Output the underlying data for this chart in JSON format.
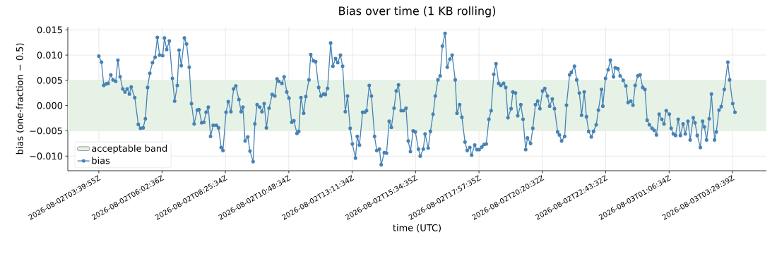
{
  "chart_data": {
    "type": "line",
    "title": "Bias over time (1 KB rolling)",
    "xlabel": "time (UTC)",
    "ylabel": "bias (one-fraction − 0.5)",
    "x": [
      "2026-08-02T03:40",
      "2026-08-02T03:46",
      "2026-08-02T03:51",
      "2026-08-02T03:56",
      "2026-08-02T04:01",
      "2026-08-02T04:07",
      "2026-08-02T04:12",
      "2026-08-02T04:18",
      "2026-08-02T04:23",
      "2026-08-02T04:28",
      "2026-08-02T04:34",
      "2026-08-02T04:39",
      "2026-08-02T04:44",
      "2026-08-02T04:49",
      "2026-08-02T04:53",
      "2026-08-02T05:01",
      "2026-08-02T05:09",
      "2026-08-02T05:14",
      "2026-08-02T05:20",
      "2026-08-02T05:25",
      "2026-08-02T05:30",
      "2026-08-02T05:35",
      "2026-08-02T05:41",
      "2026-08-02T05:47",
      "2026-08-02T05:52",
      "2026-08-02T05:57",
      "2026-08-02T06:04",
      "2026-08-02T06:08",
      "2026-08-02T06:13",
      "2026-08-02T06:19",
      "2026-08-02T06:26",
      "2026-08-02T06:31",
      "2026-08-02T06:37",
      "2026-08-02T06:41",
      "2026-08-02T06:46",
      "2026-08-02T06:53",
      "2026-08-02T06:58",
      "2026-08-02T07:04",
      "2026-08-02T07:09",
      "2026-08-02T07:15",
      "2026-08-02T07:22",
      "2026-08-02T07:26",
      "2026-08-02T07:32",
      "2026-08-02T07:37",
      "2026-08-02T07:42",
      "2026-08-02T07:47",
      "2026-08-02T07:52",
      "2026-08-02T07:58",
      "2026-08-02T08:05",
      "2026-08-02T08:10",
      "2026-08-02T08:16",
      "2026-08-02T08:20",
      "2026-08-02T08:27",
      "2026-08-02T08:32",
      "2026-08-02T08:38",
      "2026-08-02T08:44",
      "2026-08-02T08:49",
      "2026-08-02T08:56",
      "2026-08-02T09:01",
      "2026-08-02T09:05",
      "2026-08-02T09:10",
      "2026-08-02T09:16",
      "2026-08-02T09:21",
      "2026-08-02T09:28",
      "2026-08-02T09:32",
      "2026-08-02T09:37",
      "2026-08-02T09:43",
      "2026-08-02T09:48",
      "2026-08-02T09:53",
      "2026-08-02T09:58",
      "2026-08-02T10:04",
      "2026-08-02T10:11",
      "2026-08-02T10:17",
      "2026-08-02T10:22",
      "2026-08-02T10:26",
      "2026-08-02T10:33",
      "2026-08-02T10:38",
      "2026-08-02T10:44",
      "2026-08-02T10:49",
      "2026-08-02T10:55",
      "2026-08-02T11:00",
      "2026-08-02T11:07",
      "2026-08-02T11:11",
      "2026-08-02T11:16",
      "2026-08-02T11:22",
      "2026-08-02T11:27",
      "2026-08-02T11:34",
      "2026-08-02T11:38",
      "2026-08-02T11:44",
      "2026-08-02T11:49",
      "2026-08-02T11:56",
      "2026-08-02T12:01",
      "2026-08-02T12:07",
      "2026-08-02T12:11",
      "2026-08-02T12:16",
      "2026-08-02T12:23",
      "2026-08-02T12:28",
      "2026-08-02T12:34",
      "2026-08-02T12:39",
      "2026-08-02T12:45",
      "2026-08-02T12:50",
      "2026-08-02T12:56",
      "2026-08-02T13:01",
      "2026-08-02T13:07",
      "2026-08-02T13:12",
      "2026-08-02T13:19",
      "2026-08-02T13:23",
      "2026-08-02T13:28",
      "2026-08-02T13:35",
      "2026-08-02T13:40",
      "2026-08-02T13:44",
      "2026-08-02T13:50",
      "2026-08-02T13:55",
      "2026-08-02T14:02",
      "2026-08-02T14:07",
      "2026-08-02T14:13",
      "2026-08-02T14:17",
      "2026-08-02T14:24",
      "2026-08-02T14:29",
      "2026-08-02T14:35",
      "2026-08-02T14:40",
      "2026-08-02T14:46",
      "2026-08-02T14:51",
      "2026-08-02T14:56",
      "2026-08-02T15:02",
      "2026-08-02T15:07",
      "2026-08-02T15:13",
      "2026-08-02T15:18",
      "2026-08-02T15:23",
      "2026-08-02T15:29",
      "2026-08-02T15:34",
      "2026-08-02T15:41",
      "2026-08-02T15:45",
      "2026-08-02T15:52",
      "2026-08-02T15:56",
      "2026-08-02T16:03",
      "2026-08-02T16:08",
      "2026-08-02T16:14",
      "2026-08-02T16:19",
      "2026-08-02T16:25",
      "2026-08-02T16:30",
      "2026-08-02T16:35",
      "2026-08-02T16:41",
      "2026-08-02T16:46",
      "2026-08-02T16:52",
      "2026-08-02T16:57",
      "2026-08-02T17:04",
      "2026-08-02T17:08",
      "2026-08-02T17:14",
      "2026-08-02T17:19",
      "2026-08-02T17:26",
      "2026-08-02T17:31",
      "2026-08-02T17:37",
      "2026-08-02T17:41",
      "2026-08-02T17:48",
      "2026-08-02T17:53",
      "2026-08-02T17:58",
      "2026-08-02T18:04",
      "2026-08-02T18:09",
      "2026-08-02T18:14",
      "2026-08-02T18:20",
      "2026-08-02T18:25",
      "2026-08-02T18:31",
      "2026-08-02T18:36",
      "2026-08-02T18:42",
      "2026-08-02T18:47",
      "2026-08-02T18:53",
      "2026-08-02T18:58",
      "2026-08-02T19:03",
      "2026-08-02T19:10",
      "2026-08-02T19:14",
      "2026-08-02T19:20",
      "2026-08-02T19:25",
      "2026-08-02T19:32",
      "2026-08-02T19:37",
      "2026-08-02T19:43",
      "2026-08-02T19:47",
      "2026-08-02T19:54",
      "2026-08-02T19:59",
      "2026-08-02T20:05",
      "2026-08-02T20:10",
      "2026-08-02T20:15",
      "2026-08-02T20:21",
      "2026-08-02T20:26",
      "2026-08-02T20:32",
      "2026-08-02T20:37",
      "2026-08-02T20:43",
      "2026-08-02T20:48",
      "2026-08-02T20:55",
      "2026-08-02T20:59",
      "2026-08-02T21:04",
      "2026-08-02T21:11",
      "2026-08-02T21:15",
      "2026-08-02T21:22",
      "2026-08-02T21:26",
      "2026-08-02T21:33",
      "2026-08-02T21:38",
      "2026-08-02T21:44",
      "2026-08-02T21:49",
      "2026-08-02T21:55",
      "2026-08-02T22:00",
      "2026-08-02T22:05",
      "2026-08-02T22:11",
      "2026-08-02T22:16",
      "2026-08-02T22:22",
      "2026-08-02T22:27",
      "2026-08-02T22:34",
      "2026-08-02T22:37",
      "2026-08-02T22:43",
      "2026-08-02T22:49",
      "2026-08-02T22:54",
      "2026-08-02T23:01",
      "2026-08-02T23:05",
      "2026-08-02T23:11",
      "2026-08-02T23:16",
      "2026-08-02T23:23",
      "2026-08-02T23:29",
      "2026-08-02T23:34",
      "2026-08-02T23:40",
      "2026-08-02T23:45",
      "2026-08-02T23:50",
      "2026-08-02T23:56",
      "2026-08-03T00:01",
      "2026-08-03T00:07",
      "2026-08-03T00:12",
      "2026-08-03T00:17",
      "2026-08-03T00:22",
      "2026-08-03T00:28",
      "2026-08-03T00:33",
      "2026-08-03T00:38",
      "2026-08-03T00:44",
      "2026-08-03T00:50",
      "2026-08-03T00:55",
      "2026-08-03T01:00",
      "2026-08-03T01:07",
      "2026-08-03T01:11",
      "2026-08-03T01:16",
      "2026-08-03T01:21",
      "2026-08-03T01:27",
      "2026-08-03T01:32",
      "2026-08-03T01:38",
      "2026-08-03T01:43",
      "2026-08-03T01:49",
      "2026-08-03T01:54",
      "2026-08-03T02:01",
      "2026-08-03T02:05",
      "2026-08-03T02:10",
      "2026-08-03T02:17",
      "2026-08-03T02:22",
      "2026-08-03T02:26",
      "2026-08-03T02:31",
      "2026-08-03T02:37",
      "2026-08-03T02:42",
      "2026-08-03T02:49",
      "2026-08-03T02:53",
      "2026-08-03T02:59",
      "2026-08-03T03:04",
      "2026-08-03T03:11",
      "2026-08-03T03:19",
      "2026-08-03T03:23",
      "2026-08-03T03:30",
      "2026-08-03T03:35"
    ],
    "series": [
      {
        "name": "bias",
        "color": "#4682b4",
        "values": [
          0.0098,
          0.0086,
          0.004,
          0.0043,
          0.0044,
          0.0061,
          0.0051,
          0.0048,
          0.009,
          0.0057,
          0.0033,
          0.0027,
          0.0033,
          0.0023,
          0.0037,
          0.0016,
          -0.0037,
          -0.0045,
          -0.0044,
          -0.0026,
          0.0036,
          0.0064,
          0.0085,
          0.0096,
          0.0135,
          0.01,
          0.0099,
          0.0134,
          0.0111,
          0.0128,
          0.0054,
          0.0009,
          0.004,
          0.011,
          0.0079,
          0.0134,
          0.0122,
          0.0076,
          0.0004,
          -0.0036,
          -0.0009,
          -0.0008,
          -0.0034,
          -0.0033,
          -0.0013,
          -0.0003,
          -0.0061,
          -0.0039,
          -0.0039,
          -0.0044,
          -0.0083,
          -0.0089,
          -0.0013,
          0.0008,
          -0.0012,
          0.0033,
          0.0039,
          0.0012,
          -0.0012,
          -0.0003,
          -0.007,
          -0.0062,
          -0.009,
          -0.0111,
          -0.0036,
          0.0002,
          -0.0003,
          -0.0012,
          0.0004,
          -0.0044,
          -0.0005,
          0.0022,
          0.0019,
          0.0053,
          0.0048,
          0.0044,
          0.0057,
          0.0027,
          0.0015,
          -0.0033,
          -0.003,
          -0.0055,
          -0.0051,
          0.0016,
          -0.0015,
          0.0018,
          0.0051,
          0.0101,
          0.0089,
          0.0087,
          0.0036,
          0.0019,
          0.0023,
          0.0022,
          0.0034,
          0.0124,
          0.0078,
          0.0093,
          0.0085,
          0.01,
          0.0078,
          -0.0012,
          0.0019,
          -0.0045,
          -0.0076,
          -0.0104,
          -0.0061,
          -0.0078,
          -0.0013,
          -0.0013,
          -0.001,
          0.004,
          0.0019,
          -0.0061,
          -0.0089,
          -0.0086,
          -0.0117,
          -0.0093,
          -0.0094,
          -0.0031,
          -0.0043,
          -0.0005,
          0.0029,
          0.0041,
          -0.001,
          -0.001,
          -0.0005,
          -0.007,
          -0.0091,
          -0.005,
          -0.0052,
          -0.0086,
          -0.01,
          -0.0086,
          -0.0056,
          -0.0084,
          -0.0051,
          -0.0017,
          0.0019,
          0.0051,
          0.0059,
          0.0118,
          0.0143,
          0.0076,
          0.0092,
          0.01,
          0.0051,
          -0.0015,
          0.0002,
          -0.0023,
          -0.0072,
          -0.0089,
          -0.0083,
          -0.0098,
          -0.0078,
          -0.0087,
          -0.0087,
          -0.0082,
          -0.0077,
          -0.0076,
          -0.0027,
          -0.001,
          0.0062,
          0.0083,
          0.0044,
          0.004,
          0.0044,
          0.0036,
          -0.0024,
          -0.0006,
          0.0027,
          0.0025,
          -0.002,
          0.0002,
          -0.0027,
          -0.0087,
          -0.0064,
          -0.0075,
          -0.0045,
          0.0002,
          0.0009,
          -0.0006,
          0.0029,
          0.0034,
          0.0019,
          -0.0001,
          0.0013,
          -0.0006,
          -0.0052,
          -0.0058,
          -0.007,
          -0.0061,
          0.0001,
          0.0061,
          0.0066,
          0.0078,
          0.0051,
          0.0025,
          -0.0019,
          0.0027,
          -0.0022,
          -0.0051,
          -0.0062,
          -0.0051,
          -0.0038,
          -0.0009,
          0.0032,
          -0.0001,
          0.0054,
          0.0071,
          0.009,
          0.0057,
          0.0075,
          0.0073,
          0.0059,
          0.005,
          0.0039,
          0.0006,
          0.0009,
          0.0001,
          0.004,
          0.0059,
          0.0061,
          0.0036,
          0.0032,
          -0.0029,
          -0.0038,
          -0.0045,
          -0.0049,
          -0.0058,
          -0.0017,
          -0.0027,
          -0.0036,
          -0.001,
          -0.0017,
          -0.0045,
          -0.0056,
          -0.0059,
          -0.0027,
          -0.0059,
          -0.0036,
          -0.0056,
          -0.0031,
          -0.0068,
          -0.0024,
          -0.0034,
          -0.0059,
          -0.0083,
          -0.0031,
          -0.0042,
          -0.0068,
          -0.0026,
          0.0023,
          -0.0068,
          -0.0052,
          -0.0009,
          -0.0002,
          0.0032,
          0.0086,
          0.0051,
          0.0004,
          -0.0013
        ]
      }
    ],
    "xlim": [
      "2026-08-02T02:30",
      "2026-08-03T04:46"
    ],
    "ylim": [
      -0.0129,
      0.0156
    ],
    "xticks": [
      {
        "value": "2026-08-02T03:39:55",
        "label": "2026-08-02T03:39:55Z"
      },
      {
        "value": "2026-08-02T06:02:36",
        "label": "2026-08-02T06:02:36Z"
      },
      {
        "value": "2026-08-02T08:25:34",
        "label": "2026-08-02T08:25:34Z"
      },
      {
        "value": "2026-08-02T10:48:34",
        "label": "2026-08-02T10:48:34Z"
      },
      {
        "value": "2026-08-02T13:11:34",
        "label": "2026-08-02T13:11:34Z"
      },
      {
        "value": "2026-08-02T15:34:35",
        "label": "2026-08-02T15:34:35Z"
      },
      {
        "value": "2026-08-02T17:57:35",
        "label": "2026-08-02T17:57:35Z"
      },
      {
        "value": "2026-08-02T20:20:32",
        "label": "2026-08-02T20:20:32Z"
      },
      {
        "value": "2026-08-02T22:43:32",
        "label": "2026-08-02T22:43:32Z"
      },
      {
        "value": "2026-08-03T01:06:34",
        "label": "2026-08-03T01:06:34Z"
      },
      {
        "value": "2026-08-03T03:29:39",
        "label": "2026-08-03T03:29:39Z"
      }
    ],
    "yticks": [
      {
        "value": -0.01,
        "label": "−0.010"
      },
      {
        "value": -0.005,
        "label": "−0.005"
      },
      {
        "value": 0,
        "label": "0.000"
      },
      {
        "value": 0.005,
        "label": "0.005"
      },
      {
        "value": 0.01,
        "label": "0.010"
      },
      {
        "value": 0.015,
        "label": "0.015"
      }
    ],
    "bands": [
      {
        "axis": "y",
        "from": -0.005,
        "to": 0.005,
        "label": "acceptable band",
        "color": "#e6f2e6"
      }
    ],
    "grid": true,
    "legend": "bottom left",
    "marker": "circle",
    "line_style": "solid"
  }
}
